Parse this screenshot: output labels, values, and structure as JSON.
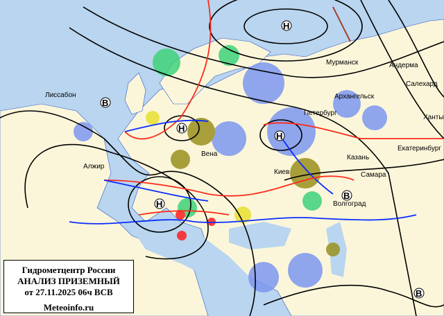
{
  "legend": {
    "line1": "Гидрометцентр России",
    "line2": "АНАЛИЗ ПРИЗЕМНЫЙ",
    "line3": "от 27.11.2025 06ч ВСВ",
    "site": "Meteoinfo.ru"
  },
  "pressure_centers": {
    "low_1": "Н",
    "low_2": "Н",
    "low_3": "Н",
    "low_4": "Н",
    "high_1": "В",
    "high_2": "В",
    "high_3": "В"
  },
  "cities": {
    "murmansk": "Мурманск",
    "amderma": "Андерма",
    "salekhard": "Салехард",
    "arkhangelsk": "Архангельск",
    "peterburg": "Петербург",
    "khanty": "Ханты",
    "ekaterinburg": "Екатеринбург",
    "kazan": "Казань",
    "samara": "Самара",
    "volgograd": "Волгоград",
    "kiev": "Киев",
    "vena": "Вена",
    "lissabon": "Лиссабон",
    "aljir": "Алжир"
  },
  "colors": {
    "sea": "#b9d5ef",
    "land": "#fbf6da",
    "isobar": "#000000",
    "cold_front": "#0a2cff",
    "warm_front": "#ff2a1a",
    "precip_snow": "#7d97f0",
    "precip_rain": "#3ed27a",
    "precip_fog": "#9a9020",
    "thunder": "#ff2020",
    "temp_negative": "#ff40c0"
  }
}
